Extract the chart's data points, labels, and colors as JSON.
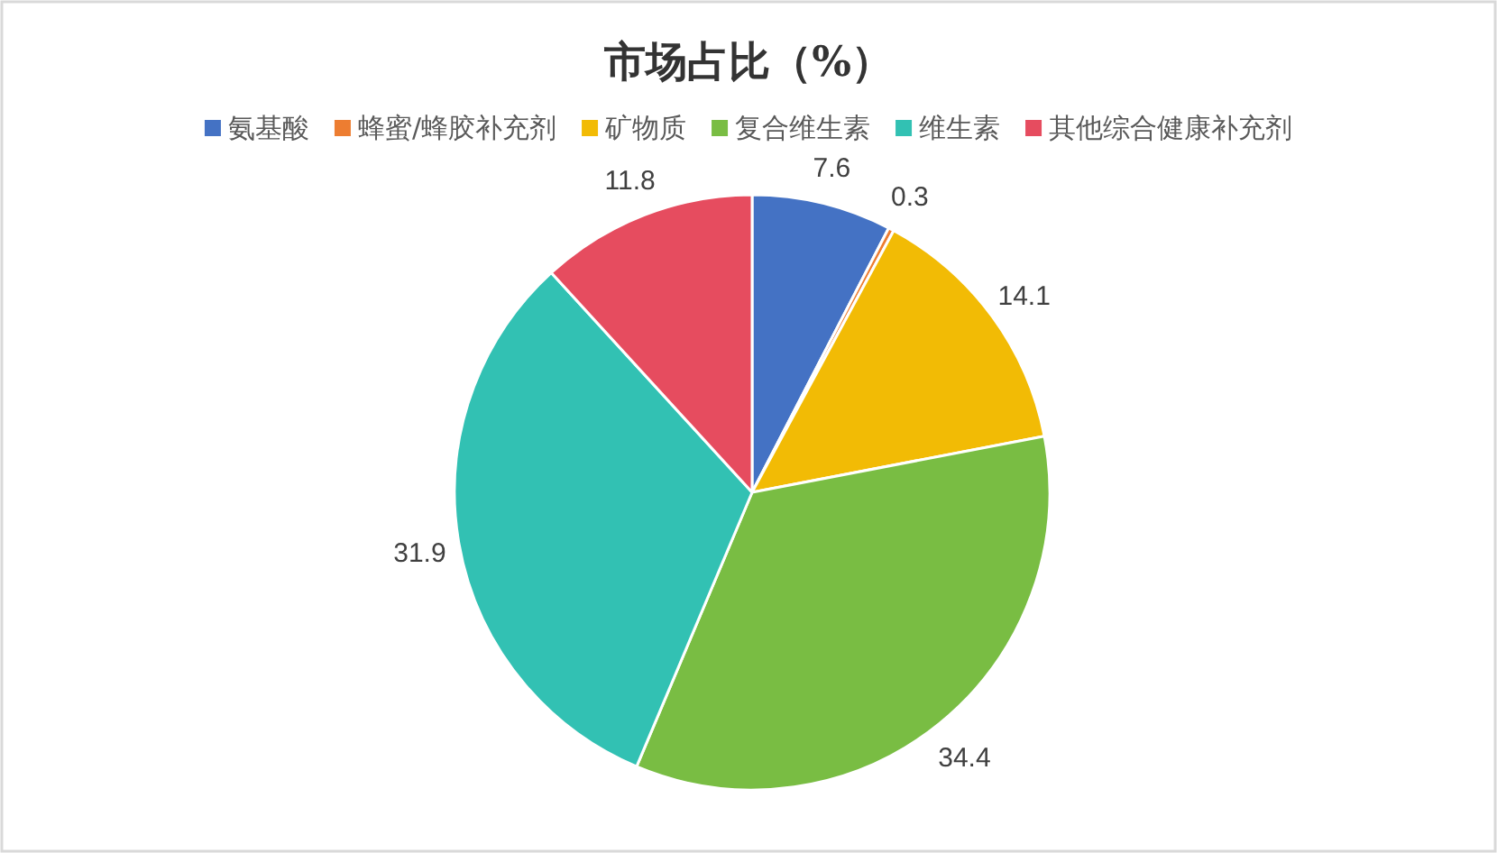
{
  "chart_data": {
    "type": "pie",
    "title": "市场占比（%）",
    "categories": [
      "氨基酸",
      "蜂蜜/蜂胶补充剂",
      "矿物质",
      "复合维生素",
      "维生素",
      "其他综合健康补充剂"
    ],
    "values": [
      7.6,
      0.3,
      14.1,
      34.4,
      31.9,
      11.8
    ],
    "colors": [
      "#4472c4",
      "#ed7d31",
      "#f2bb05",
      "#79bd43",
      "#32c1b3",
      "#e64c5f"
    ],
    "data_labels": true,
    "legend": "top"
  }
}
